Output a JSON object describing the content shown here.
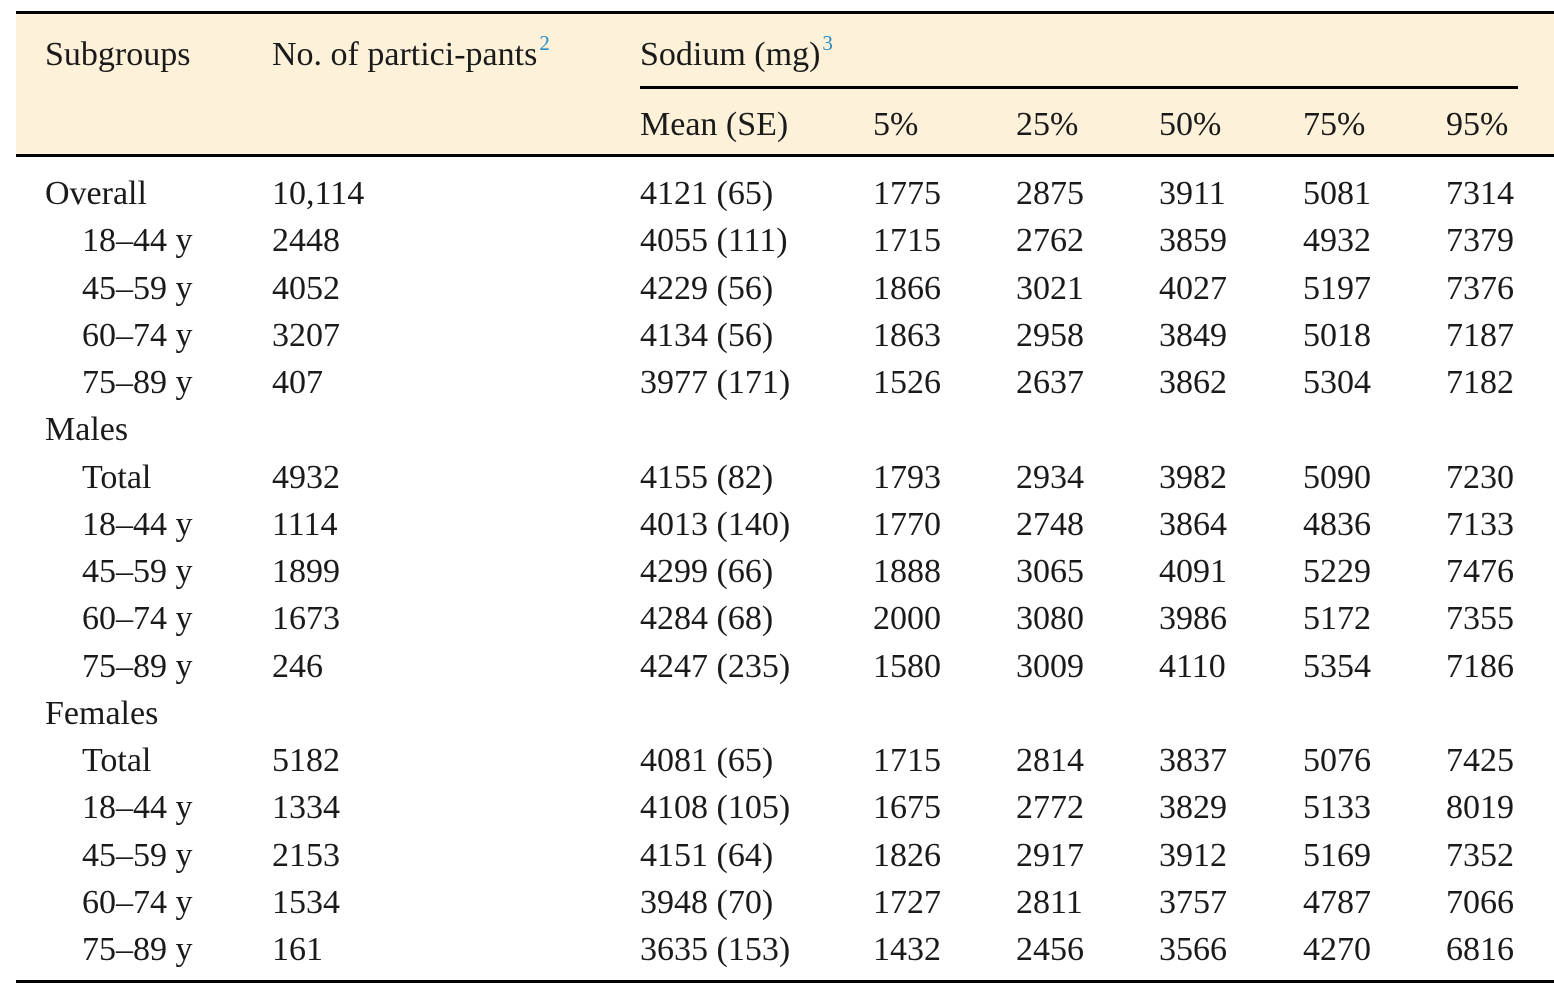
{
  "header": {
    "subgroups": "Subgroups",
    "participants": "No. of partici-pants",
    "participants_sup": "2",
    "sodium": "Sodium (mg)",
    "sodium_sup": "3",
    "mean": "Mean (SE)",
    "p5": "5%",
    "p25": "25%",
    "p50": "50%",
    "p75": "75%",
    "p95": "95%"
  },
  "rows": [
    {
      "label": "Overall",
      "n": "10,114",
      "mean": "4121 (65)",
      "p5": "1775",
      "p25": "2875",
      "p50": "3911",
      "p75": "5081",
      "p95": "7314"
    },
    {
      "label": "18–44 y",
      "n": "2448",
      "mean": "4055 (111)",
      "p5": "1715",
      "p25": "2762",
      "p50": "3859",
      "p75": "4932",
      "p95": "7379"
    },
    {
      "label": "45–59 y",
      "n": "4052",
      "mean": "4229 (56)",
      "p5": "1866",
      "p25": "3021",
      "p50": "4027",
      "p75": "5197",
      "p95": "7376"
    },
    {
      "label": "60–74 y",
      "n": "3207",
      "mean": "4134 (56)",
      "p5": "1863",
      "p25": "2958",
      "p50": "3849",
      "p75": "5018",
      "p95": "7187"
    },
    {
      "label": "75–89 y",
      "n": "407",
      "mean": "3977 (171)",
      "p5": "1526",
      "p25": "2637",
      "p50": "3862",
      "p75": "5304",
      "p95": "7182"
    },
    {
      "label": "Males"
    },
    {
      "label": "Total",
      "n": "4932",
      "mean": "4155 (82)",
      "p5": "1793",
      "p25": "2934",
      "p50": "3982",
      "p75": "5090",
      "p95": "7230"
    },
    {
      "label": "18–44 y",
      "n": "1114",
      "mean": "4013 (140)",
      "p5": "1770",
      "p25": "2748",
      "p50": "3864",
      "p75": "4836",
      "p95": "7133"
    },
    {
      "label": "45–59 y",
      "n": "1899",
      "mean": "4299 (66)",
      "p5": "1888",
      "p25": "3065",
      "p50": "4091",
      "p75": "5229",
      "p95": "7476"
    },
    {
      "label": "60–74 y",
      "n": "1673",
      "mean": "4284 (68)",
      "p5": "2000",
      "p25": "3080",
      "p50": "3986",
      "p75": "5172",
      "p95": "7355"
    },
    {
      "label": "75–89 y",
      "n": "246",
      "mean": "4247 (235)",
      "p5": "1580",
      "p25": "3009",
      "p50": "4110",
      "p75": "5354",
      "p95": "7186"
    },
    {
      "label": "Females"
    },
    {
      "label": "Total",
      "n": "5182",
      "mean": "4081 (65)",
      "p5": "1715",
      "p25": "2814",
      "p50": "3837",
      "p75": "5076",
      "p95": "7425"
    },
    {
      "label": "18–44 y",
      "n": "1334",
      "mean": "4108 (105)",
      "p5": "1675",
      "p25": "2772",
      "p50": "3829",
      "p75": "5133",
      "p95": "8019"
    },
    {
      "label": "45–59 y",
      "n": "2153",
      "mean": "4151 (64)",
      "p5": "1826",
      "p25": "2917",
      "p50": "3912",
      "p75": "5169",
      "p95": "7352"
    },
    {
      "label": "60–74 y",
      "n": "1534",
      "mean": "3948 (70)",
      "p5": "1727",
      "p25": "2811",
      "p50": "3757",
      "p75": "4787",
      "p95": "7066"
    },
    {
      "label": "75–89 y",
      "n": "161",
      "mean": "3635 (153)",
      "p5": "1432",
      "p25": "2456",
      "p50": "3566",
      "p75": "4270",
      "p95": "6816"
    }
  ]
}
